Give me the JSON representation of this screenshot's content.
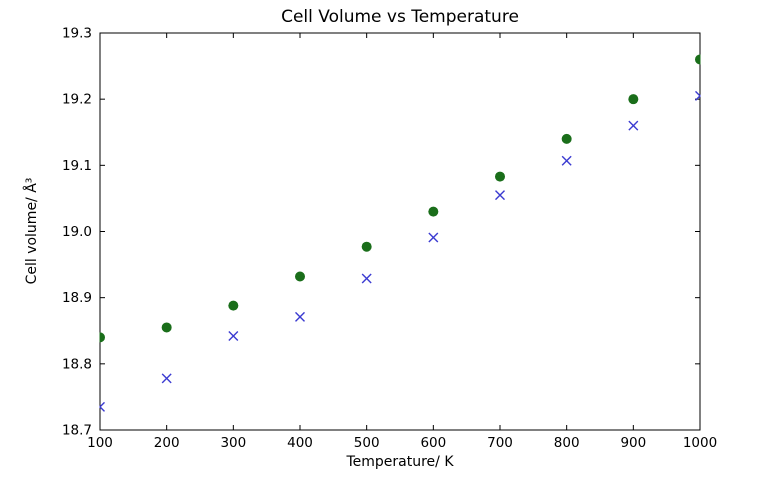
{
  "chart_data": {
    "type": "scatter",
    "title": "Cell Volume vs Temperature",
    "xlabel": "Temperature/ K",
    "ylabel": "Cell volume/ Å³",
    "xlim": [
      100,
      1000
    ],
    "ylim": [
      18.7,
      19.3
    ],
    "xticks": [
      100,
      200,
      300,
      400,
      500,
      600,
      700,
      800,
      900,
      1000
    ],
    "yticks": [
      18.7,
      18.8,
      18.9,
      19.0,
      19.1,
      19.2,
      19.3
    ],
    "grid": false,
    "legend": "none",
    "frame_color": "#000000",
    "series": [
      {
        "name": "cell-volume-dots",
        "marker": "circle",
        "color": "#1a6e1a",
        "x": [
          100,
          200,
          300,
          400,
          500,
          600,
          700,
          800,
          900,
          1000
        ],
        "y": [
          18.84,
          18.855,
          18.888,
          18.932,
          18.977,
          19.03,
          19.083,
          19.14,
          19.2,
          19.26
        ]
      },
      {
        "name": "cell-volume-crosses",
        "marker": "x",
        "color": "#3b3bd1",
        "x": [
          100,
          200,
          300,
          400,
          500,
          600,
          700,
          800,
          900,
          1000
        ],
        "y": [
          18.735,
          18.778,
          18.842,
          18.871,
          18.929,
          18.991,
          19.055,
          19.107,
          19.16,
          19.205
        ]
      }
    ]
  }
}
